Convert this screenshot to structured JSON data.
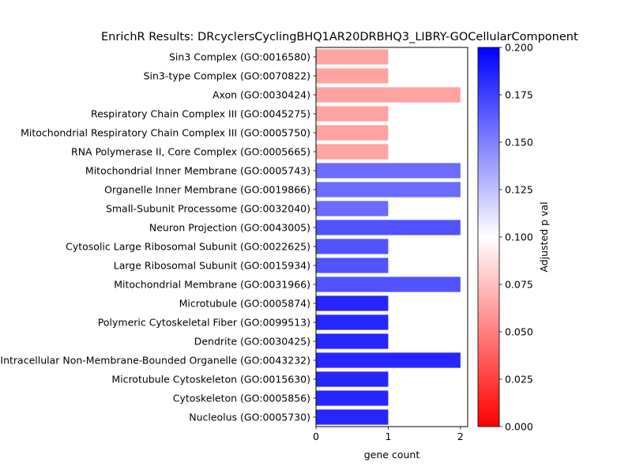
{
  "chart_data": {
    "type": "bar",
    "orientation": "horizontal",
    "title": "EnrichR Results: DRcyclersCyclingBHQ1AR20DRBHQ3_LIBRY-GOCellularComponent",
    "xlabel": "gene count",
    "ylabel": "",
    "xlim": [
      0,
      2.1
    ],
    "xticks": [
      0,
      1,
      2
    ],
    "xtick_labels": [
      "0",
      "1",
      "2"
    ],
    "grid": false,
    "categories": [
      "Sin3 Complex (GO:0016580)",
      "Sin3-type Complex (GO:0070822)",
      "Axon (GO:0030424)",
      "Respiratory Chain Complex III (GO:0045275)",
      "Mitochondrial Respiratory Chain Complex III (GO:0005750)",
      "RNA Polymerase II, Core Complex (GO:0005665)",
      "Mitochondrial Inner Membrane (GO:0005743)",
      "Organelle Inner Membrane (GO:0019866)",
      "Small-Subunit Processome (GO:0032040)",
      "Neuron Projection (GO:0043005)",
      "Cytosolic Large Ribosomal Subunit (GO:0022625)",
      "Large Ribosomal Subunit (GO:0015934)",
      "Mitochondrial Membrane (GO:0031966)",
      "Microtubule (GO:0005874)",
      "Polymeric Cytoskeletal Fiber (GO:0099513)",
      "Dendrite (GO:0030425)",
      "Intracellular Non-Membrane-Bounded Organelle (GO:0043232)",
      "Microtubule Cytoskeleton (GO:0015630)",
      "Cytoskeleton (GO:0005856)",
      "Nucleolus (GO:0005730)"
    ],
    "values": [
      1,
      1,
      2,
      1,
      1,
      1,
      2,
      2,
      1,
      2,
      1,
      1,
      2,
      1,
      1,
      1,
      2,
      1,
      1,
      1
    ],
    "color_values": [
      0.064,
      0.064,
      0.064,
      0.064,
      0.064,
      0.064,
      0.158,
      0.158,
      0.158,
      0.168,
      0.168,
      0.168,
      0.168,
      0.185,
      0.185,
      0.185,
      0.185,
      0.185,
      0.185,
      0.185
    ],
    "colorbar": {
      "label": "Adjusted p val",
      "range": [
        0.0,
        0.2
      ],
      "ticks": [
        0.0,
        0.025,
        0.05,
        0.075,
        0.1,
        0.125,
        0.15,
        0.175,
        0.2
      ],
      "tick_labels": [
        "0.000",
        "0.025",
        "0.050",
        "0.075",
        "0.100",
        "0.125",
        "0.150",
        "0.175",
        "0.200"
      ],
      "colormap": [
        "#ff0000",
        "#ffffff",
        "#0000ff"
      ]
    }
  }
}
